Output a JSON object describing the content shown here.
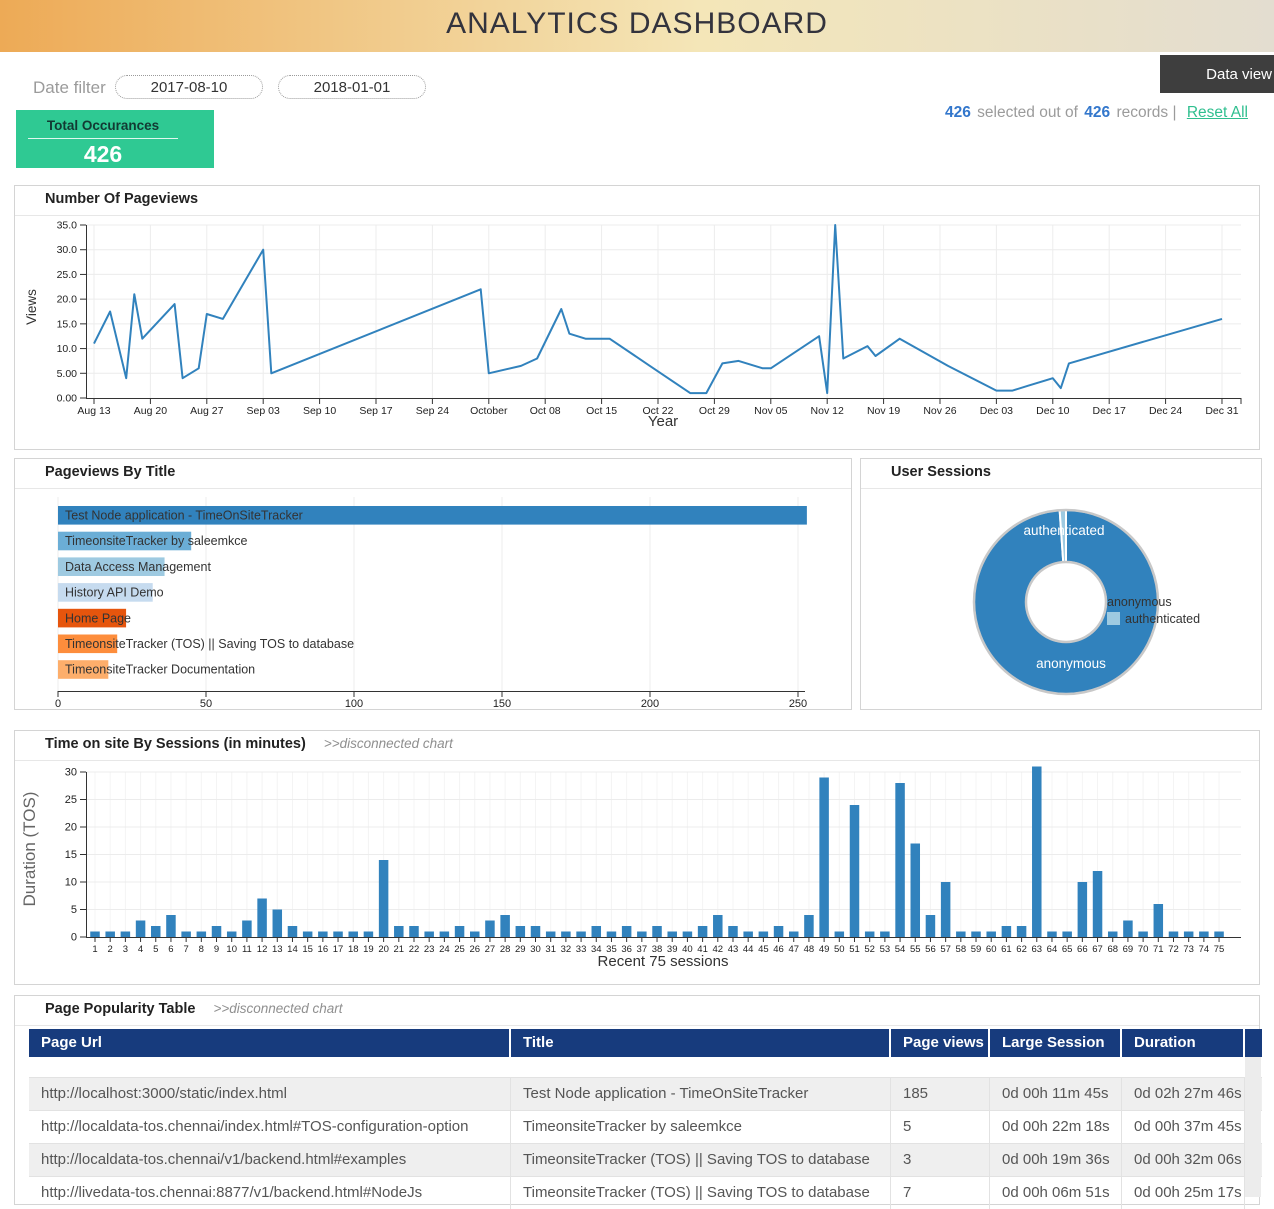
{
  "header": {
    "title": "ANALYTICS DASHBOARD"
  },
  "controls": {
    "date_filter_label": "Date filter",
    "date_from": "2017-08-10",
    "date_to": "2018-01-01",
    "data_view_button": "Data view",
    "selected_count": "426",
    "selected_text": "selected out of",
    "total_records": "426",
    "records_text": "records |",
    "reset_link": "Reset All"
  },
  "total_card": {
    "label": "Total Occurances",
    "value": "426"
  },
  "panels": {
    "pageviews": {
      "title": "Number Of Pageviews"
    },
    "by_title": {
      "title": "Pageviews By Title"
    },
    "user_sessions": {
      "title": "User Sessions"
    },
    "tos_sessions": {
      "title": "Time on site By Sessions (in minutes)",
      "subtitle": ">>disconnected chart"
    },
    "popularity": {
      "title": "Page Popularity Table",
      "subtitle": ">>disconnected chart"
    }
  },
  "colors": {
    "accent_green": "#2fc993",
    "link_blue": "#3377cc",
    "chart_blue": "#3182bd",
    "table_header_navy": "#173b7d"
  },
  "chart_data": [
    {
      "type": "line",
      "title": "Number Of Pageviews",
      "xlabel": "Year",
      "ylabel": "Views",
      "x_start_date": "2017-08-13",
      "x_unit": "days since start",
      "xlim": [
        0,
        140
      ],
      "ylim": [
        0,
        35
      ],
      "x_tick_labels": [
        "Aug 13",
        "Aug 20",
        "Aug 27",
        "Sep 03",
        "Sep 10",
        "Sep 17",
        "Sep 24",
        "October",
        "Oct 08",
        "Oct 15",
        "Oct 22",
        "Oct 29",
        "Nov 05",
        "Nov 12",
        "Nov 19",
        "Nov 26",
        "Dec 03",
        "Dec 10",
        "Dec 17",
        "Dec 24",
        "Dec 31"
      ],
      "y_tick_labels": [
        "0.00",
        "5.00",
        "10.0",
        "15.0",
        "20.0",
        "25.0",
        "30.0",
        "35.0"
      ],
      "grid": true,
      "color": "#3182bd",
      "points": [
        [
          0,
          11
        ],
        [
          2,
          17.5
        ],
        [
          4,
          4
        ],
        [
          5,
          21
        ],
        [
          6,
          12
        ],
        [
          10,
          19
        ],
        [
          11,
          4
        ],
        [
          13,
          6
        ],
        [
          14,
          17
        ],
        [
          16,
          16
        ],
        [
          21,
          30
        ],
        [
          22,
          5
        ],
        [
          48,
          22
        ],
        [
          49,
          5
        ],
        [
          53,
          6.5
        ],
        [
          55,
          8
        ],
        [
          58,
          18
        ],
        [
          59,
          13
        ],
        [
          61,
          12
        ],
        [
          64,
          12
        ],
        [
          69,
          6.5
        ],
        [
          74,
          1
        ],
        [
          76,
          1
        ],
        [
          78,
          7
        ],
        [
          80,
          7.5
        ],
        [
          83,
          6
        ],
        [
          84,
          6
        ],
        [
          90,
          12.5
        ],
        [
          91,
          1
        ],
        [
          92,
          35
        ],
        [
          93,
          8
        ],
        [
          96,
          10.5
        ],
        [
          97,
          8.5
        ],
        [
          100,
          12
        ],
        [
          106,
          6.5
        ],
        [
          112,
          1.5
        ],
        [
          114,
          1.5
        ],
        [
          116,
          2.5
        ],
        [
          119,
          4
        ],
        [
          120,
          2
        ],
        [
          121,
          7
        ],
        [
          140,
          16
        ]
      ]
    },
    {
      "type": "bar",
      "orientation": "horizontal",
      "title": "Pageviews By Title",
      "categories": [
        "Test Node application - TimeOnSiteTracker",
        "TimeonsiteTracker by saleemkce",
        "Data Access Management",
        "History API Demo",
        "Home Page",
        "TimeonsiteTracker (TOS) || Saving TOS to database",
        "TimeonsiteTracker Documentation"
      ],
      "values": [
        253,
        45,
        36,
        32,
        23,
        20,
        17
      ],
      "colors": [
        "#3182bd",
        "#6baed6",
        "#9ecae1",
        "#c6dbef",
        "#e6550d",
        "#fd8d3c",
        "#fdae6b"
      ],
      "xlim": [
        0,
        250
      ],
      "x_ticks": [
        0,
        50,
        100,
        150,
        200,
        250
      ],
      "grid": true
    },
    {
      "type": "pie",
      "donut": true,
      "title": "User Sessions",
      "slices": [
        {
          "label": "anonymous",
          "percent": 98.9,
          "color": "#3182bd"
        },
        {
          "label": "authenticated",
          "percent": 1.1,
          "color": "#9ecae1"
        }
      ],
      "legend": {
        "position": "middle-right",
        "items": [
          {
            "label": "anonymous",
            "swatch": ""
          },
          {
            "label": "authenticated",
            "swatch": "#9ecae1"
          }
        ]
      }
    },
    {
      "type": "bar",
      "orientation": "vertical",
      "title": "Time on site By Sessions (in minutes)",
      "subtitle": ">>disconnected chart",
      "xlabel": "Recent 75 sessions",
      "ylabel": "Duration (TOS)",
      "x_tick_labels": "1 through 75, one per session",
      "ylim": [
        0,
        30
      ],
      "y_ticks": [
        0,
        5,
        10,
        15,
        20,
        25,
        30
      ],
      "grid": true,
      "color": "#3182bd",
      "values": [
        1,
        1,
        1,
        3,
        2,
        4,
        1,
        1,
        2,
        1,
        3,
        7,
        5,
        2,
        1,
        1,
        1,
        1,
        1,
        14,
        2,
        2,
        1,
        1,
        2,
        1,
        3,
        4,
        2,
        2,
        1,
        1,
        1,
        2,
        1,
        2,
        1,
        2,
        1,
        1,
        2,
        4,
        2,
        1,
        1,
        2,
        1,
        4,
        29,
        1,
        24,
        1,
        1,
        28,
        17,
        4,
        10,
        1,
        1,
        1,
        2,
        2,
        31,
        1,
        1,
        10,
        12,
        1,
        3,
        1,
        6,
        1,
        1,
        1,
        1
      ]
    }
  ],
  "popularity_table": {
    "headers": [
      "Page Url",
      "Title",
      "Page views",
      "Large Session",
      "Duration"
    ],
    "rows": [
      [
        "http://localhost:3000/static/index.html",
        "Test Node application - TimeOnSiteTracker",
        "185",
        "0d 00h 11m 45s",
        "0d 02h 27m 46s"
      ],
      [
        "http://localdata-tos.chennai/index.html#TOS-configuration-option",
        "TimeonsiteTracker by saleemkce",
        "5",
        "0d 00h 22m 18s",
        "0d 00h 37m 45s"
      ],
      [
        "http://localdata-tos.chennai/v1/backend.html#examples",
        "TimeonsiteTracker (TOS) || Saving TOS to database",
        "3",
        "0d 00h 19m 36s",
        "0d 00h 32m 06s"
      ],
      [
        "http://livedata-tos.chennai:8877/v1/backend.html#NodeJs",
        "TimeonsiteTracker (TOS) || Saving TOS to database",
        "7",
        "0d 00h 06m 51s",
        "0d 00h 25m 17s"
      ]
    ]
  }
}
